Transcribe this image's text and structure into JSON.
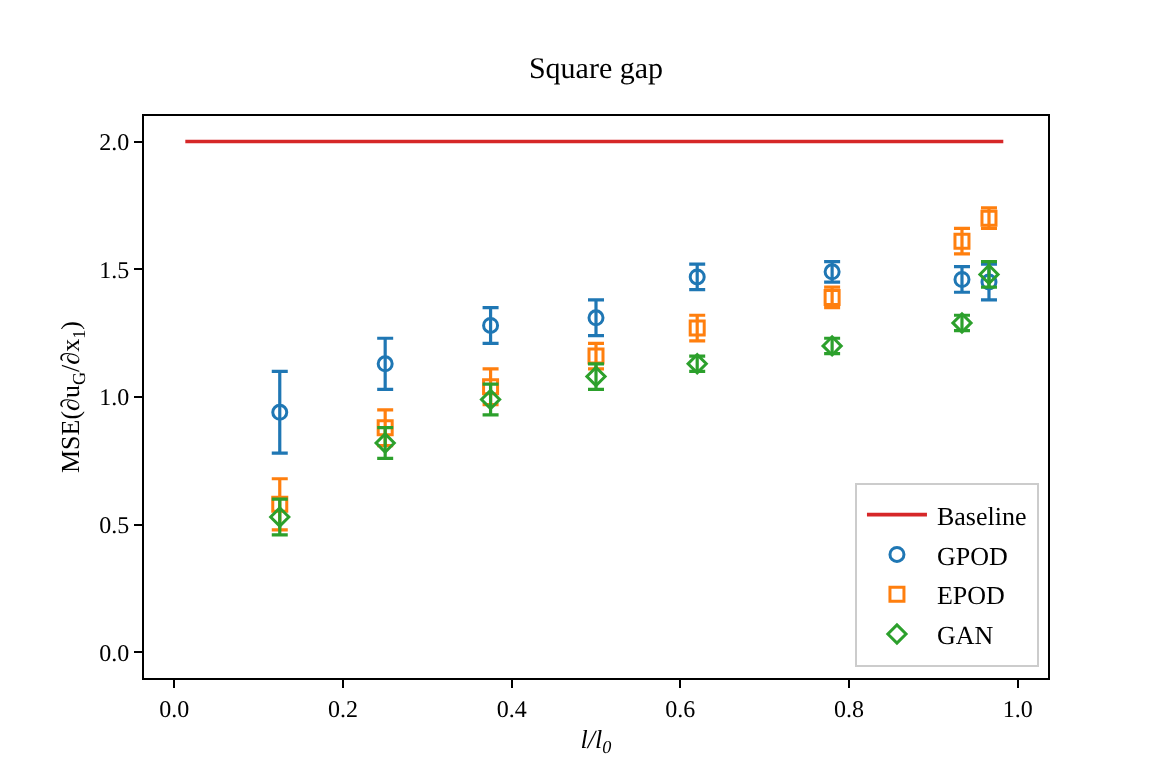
{
  "chart_data": {
    "type": "scatter",
    "title": "Square gap",
    "xlabel": "l/l$_{0}$",
    "ylabel": "MSE(∂u$_{G}$/∂x$_{1}$)",
    "xlim": [
      -0.036,
      1.036
    ],
    "ylim": [
      -0.1,
      2.1
    ],
    "xticks": [
      {
        "value": 0,
        "label": "0.0"
      },
      {
        "value": 0.2,
        "label": "0.2"
      },
      {
        "value": 0.4,
        "label": "0.4"
      },
      {
        "value": 0.6,
        "label": "0.6"
      },
      {
        "value": 0.8,
        "label": "0.8"
      },
      {
        "value": 1,
        "label": "1.0"
      }
    ],
    "yticks": [
      {
        "value": 0,
        "label": "0.0"
      },
      {
        "value": 0.5,
        "label": "0.5"
      },
      {
        "value": 1,
        "label": "1.0"
      },
      {
        "value": 1.5,
        "label": "1.5"
      },
      {
        "value": 2,
        "label": "2.0"
      }
    ],
    "grid": false,
    "legend": "bottom right",
    "series": [
      {
        "name": "Baseline",
        "type": "line",
        "color": "#d62728",
        "x": [
          0.013,
          0.983
        ],
        "values": [
          2.0,
          2.0
        ],
        "marker": "none",
        "line_style": "solid"
      },
      {
        "name": "GPOD",
        "color": "#1f77b4",
        "marker": "circle",
        "x": [
          0.125,
          0.25,
          0.375,
          0.5,
          0.62,
          0.78,
          0.934,
          0.966
        ],
        "values": [
          0.94,
          1.13,
          1.28,
          1.31,
          1.47,
          1.49,
          1.46,
          1.45
        ],
        "errors": [
          0.16,
          0.1,
          0.07,
          0.07,
          0.05,
          0.04,
          0.05,
          0.07
        ]
      },
      {
        "name": "EPOD",
        "color": "#ff7f0e",
        "marker": "square",
        "x": [
          0.125,
          0.25,
          0.375,
          0.5,
          0.62,
          0.78,
          0.934,
          0.966
        ],
        "values": [
          0.58,
          0.88,
          1.04,
          1.16,
          1.27,
          1.39,
          1.61,
          1.7
        ],
        "errors": [
          0.1,
          0.07,
          0.07,
          0.05,
          0.05,
          0.04,
          0.05,
          0.04
        ]
      },
      {
        "name": "GAN",
        "color": "#2ca02c",
        "marker": "diamond",
        "x": [
          0.125,
          0.25,
          0.375,
          0.5,
          0.62,
          0.78,
          0.934,
          0.966
        ],
        "values": [
          0.53,
          0.82,
          0.99,
          1.08,
          1.13,
          1.2,
          1.29,
          1.48
        ],
        "errors": [
          0.07,
          0.06,
          0.06,
          0.05,
          0.03,
          0.03,
          0.03,
          0.05
        ]
      }
    ]
  }
}
